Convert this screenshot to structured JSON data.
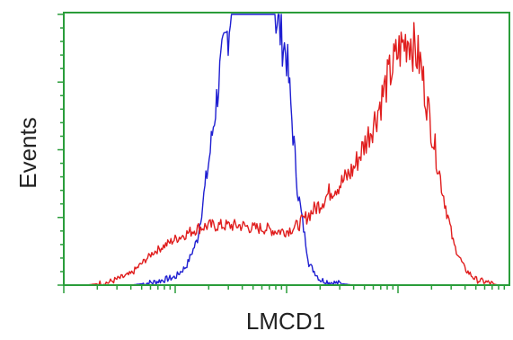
{
  "chart_data": {
    "type": "line",
    "title": "",
    "xlabel": "LMCD1",
    "ylabel": "Events",
    "x_scale": "log",
    "xlim": [
      0,
      4
    ],
    "ylim": [
      0,
      100
    ],
    "grid": false,
    "legend": "none",
    "colors": {
      "frame": "#2a9d3a",
      "control": "#1f1fd1",
      "sample": "#e01e1e",
      "text": "#222222"
    },
    "series": [
      {
        "color": "#1f1fd1",
        "x": [
          0.0,
          0.2,
          0.4,
          0.6,
          0.8,
          1.0,
          1.1,
          1.2,
          1.3,
          1.4,
          1.5,
          1.6,
          1.7,
          1.8,
          1.9,
          2.0,
          2.1,
          2.2,
          2.3,
          2.4,
          2.5,
          2.6,
          2.8,
          3.0,
          3.2,
          3.4,
          3.6,
          3.8,
          4.0
        ],
        "y": [
          0,
          0,
          0,
          0,
          1,
          3,
          7,
          17,
          45,
          78,
          100,
          100,
          100,
          100,
          100,
          85,
          35,
          8,
          2,
          1,
          0.5,
          0,
          0,
          0,
          0,
          0,
          0,
          0,
          0
        ]
      },
      {
        "color": "#e01e1e",
        "x": [
          0.0,
          0.2,
          0.4,
          0.6,
          0.8,
          1.0,
          1.1,
          1.2,
          1.3,
          1.4,
          1.5,
          1.6,
          1.7,
          1.8,
          1.9,
          2.0,
          2.1,
          2.2,
          2.3,
          2.4,
          2.5,
          2.6,
          2.7,
          2.8,
          2.9,
          3.0,
          3.1,
          3.2,
          3.3,
          3.4,
          3.5,
          3.6,
          3.7,
          3.8,
          3.9,
          4.0
        ],
        "y": [
          0,
          0,
          1,
          4,
          12,
          17,
          19,
          21,
          22,
          22,
          22,
          22,
          21,
          21,
          20,
          20,
          22,
          26,
          30,
          35,
          38,
          43,
          52,
          62,
          75,
          86,
          92,
          82,
          58,
          35,
          15,
          6,
          2,
          1,
          0,
          0
        ]
      }
    ]
  }
}
